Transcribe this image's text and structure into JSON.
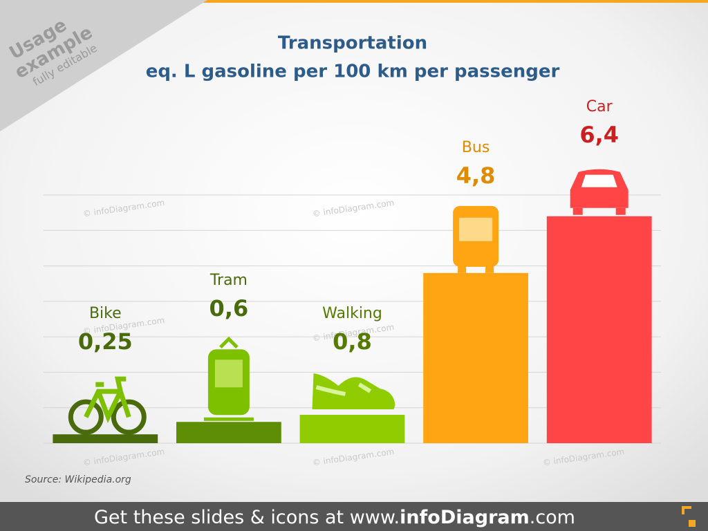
{
  "chart_data": {
    "type": "bar",
    "title": "Transportation",
    "subtitle": "eq. L gasoline per 100 km per passenger",
    "categories": [
      "Bike",
      "Tram",
      "Walking",
      "Bus",
      "Car"
    ],
    "values": [
      0.25,
      0.6,
      0.8,
      4.8,
      6.4
    ],
    "value_labels": [
      "0,25",
      "0,6",
      "0,8",
      "4,8",
      "6,4"
    ],
    "colors": [
      "#4a6b0c",
      "#5e8e06",
      "#8fcc00",
      "#ffa514",
      "#ff4545"
    ],
    "label_colors": [
      "#4a6b0c",
      "#4a6b0c",
      "#557a00",
      "#e08a00",
      "#cc1f1f"
    ],
    "ylim": [
      0,
      7
    ],
    "yticks": [
      0,
      1,
      2,
      3,
      4,
      5,
      6,
      7
    ],
    "grid": true,
    "source": "Source: Wikipedia.org"
  },
  "ribbon": {
    "line1": "Usage",
    "line2": "example",
    "line3": "fully editable"
  },
  "watermark": "© infoDiagram.com",
  "footer": {
    "prefix": "Get these slides & icons at www.",
    "brand": "infoDiagram",
    "suffix": ".com"
  }
}
